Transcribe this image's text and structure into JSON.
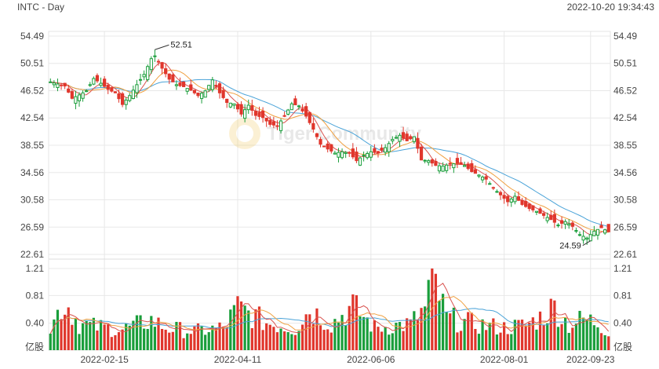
{
  "header": {
    "symbol_title": "INTC - Day",
    "timestamp": "2022-10-20 19:34:43"
  },
  "watermark": {
    "text": "Tiger Community"
  },
  "colors": {
    "up": "#1a9e3b",
    "down": "#e0362c",
    "ma5": "#d9534f",
    "ma10": "#f0a040",
    "ma20": "#4aa3d8",
    "grid": "#e8e8e8",
    "axis_text": "#444444"
  },
  "chart_data": [
    {
      "type": "candlestick",
      "title": "INTC - Day",
      "y_ticks": [
        "54.49",
        "50.51",
        "46.52",
        "42.54",
        "38.55",
        "34.56",
        "30.58",
        "26.59",
        "22.61"
      ],
      "ylim": [
        22.61,
        54.49
      ],
      "x_ticks": [
        "2022-02-15",
        "2022-04-11",
        "2022-06-06",
        "2022-08-01",
        "2022-09-23"
      ],
      "annotations": [
        {
          "label": "52.51",
          "value": 52.51,
          "kind": "high"
        },
        {
          "label": "24.59",
          "value": 24.59,
          "kind": "low"
        }
      ],
      "close_anchors": [
        [
          0,
          47.8
        ],
        [
          4,
          47.2
        ],
        [
          6,
          45.4
        ],
        [
          8,
          45.9
        ],
        [
          10,
          46.5
        ],
        [
          12,
          48.3
        ],
        [
          14,
          47.6
        ],
        [
          16,
          46.7
        ],
        [
          18,
          46.2
        ],
        [
          20,
          44.5
        ],
        [
          22,
          45.8
        ],
        [
          24,
          47.4
        ],
        [
          26,
          48.9
        ],
        [
          28,
          51.2
        ],
        [
          29,
          51.6
        ],
        [
          31,
          49.8
        ],
        [
          33,
          48.2
        ],
        [
          35,
          47.4
        ],
        [
          37,
          47.1
        ],
        [
          39,
          46.6
        ],
        [
          41,
          45.8
        ],
        [
          43,
          46.5
        ],
        [
          45,
          48.1
        ],
        [
          47,
          46.2
        ],
        [
          49,
          44.8
        ],
        [
          51,
          44.6
        ],
        [
          53,
          43.1
        ],
        [
          55,
          44.4
        ],
        [
          57,
          42.9
        ],
        [
          59,
          42.6
        ],
        [
          61,
          41.6
        ],
        [
          63,
          41.4
        ],
        [
          65,
          42.8
        ],
        [
          67,
          44.6
        ],
        [
          69,
          44.3
        ],
        [
          71,
          42.8
        ],
        [
          73,
          40.9
        ],
        [
          75,
          38.7
        ],
        [
          77,
          38.0
        ],
        [
          79,
          37.4
        ],
        [
          81,
          37.6
        ],
        [
          83,
          37.4
        ],
        [
          85,
          36.3
        ],
        [
          87,
          37.1
        ],
        [
          89,
          37.6
        ],
        [
          91,
          37.4
        ],
        [
          93,
          38.2
        ],
        [
          95,
          39.4
        ],
        [
          97,
          40.0
        ],
        [
          99,
          39.2
        ],
        [
          101,
          39.8
        ],
        [
          103,
          36.4
        ],
        [
          105,
          36.3
        ],
        [
          107,
          35.6
        ],
        [
          109,
          35.5
        ],
        [
          111,
          35.8
        ],
        [
          113,
          35.9
        ],
        [
          115,
          35.6
        ],
        [
          117,
          34.7
        ],
        [
          119,
          34.2
        ],
        [
          121,
          33.6
        ],
        [
          123,
          32.3
        ],
        [
          125,
          31.3
        ],
        [
          127,
          30.3
        ],
        [
          129,
          31.1
        ],
        [
          131,
          29.9
        ],
        [
          133,
          29.3
        ],
        [
          135,
          28.9
        ],
        [
          137,
          28.3
        ],
        [
          139,
          27.7
        ],
        [
          141,
          26.9
        ],
        [
          143,
          27.4
        ],
        [
          145,
          26.7
        ],
        [
          147,
          25.5
        ],
        [
          149,
          25.0
        ],
        [
          151,
          26.0
        ],
        [
          153,
          26.5
        ],
        [
          155,
          25.9
        ]
      ],
      "moving_averages": [
        "MA5",
        "MA10",
        "MA20"
      ]
    },
    {
      "type": "bar",
      "title": "Volume",
      "y_ticks": [
        "1.21",
        "0.81",
        "0.40",
        "亿股"
      ],
      "ylim": [
        0,
        1.21
      ],
      "unit": "亿股",
      "volume_anchors": [
        [
          0,
          0.34
        ],
        [
          3,
          0.72
        ],
        [
          5,
          0.7
        ],
        [
          8,
          0.42
        ],
        [
          12,
          0.38
        ],
        [
          20,
          0.33
        ],
        [
          28,
          0.48
        ],
        [
          32,
          0.36
        ],
        [
          40,
          0.3
        ],
        [
          48,
          0.36
        ],
        [
          52,
          0.68
        ],
        [
          60,
          0.44
        ],
        [
          68,
          0.34
        ],
        [
          72,
          0.66
        ],
        [
          78,
          0.42
        ],
        [
          84,
          0.7
        ],
        [
          90,
          0.36
        ],
        [
          100,
          0.42
        ],
        [
          104,
          0.66
        ],
        [
          106,
          1.21
        ],
        [
          110,
          0.52
        ],
        [
          114,
          0.46
        ],
        [
          120,
          0.4
        ],
        [
          126,
          0.36
        ],
        [
          132,
          0.4
        ],
        [
          136,
          0.52
        ],
        [
          140,
          0.7
        ],
        [
          144,
          0.4
        ],
        [
          148,
          0.5
        ],
        [
          152,
          0.44
        ],
        [
          155,
          0.3
        ]
      ]
    }
  ]
}
